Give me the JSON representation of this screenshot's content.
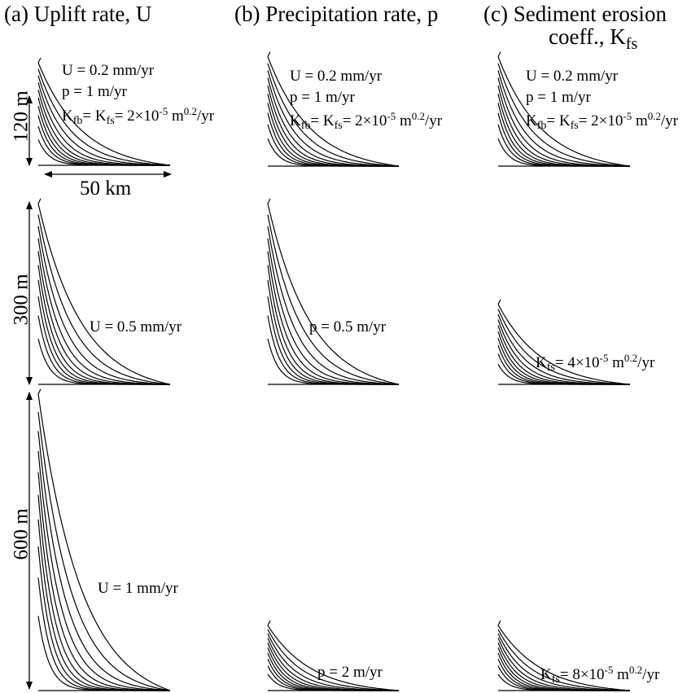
{
  "columns": {
    "a": {
      "title": "(a) Uplift rate, U"
    },
    "b": {
      "title": "(b) Precipitation rate, p"
    },
    "c": {
      "title_line1": "(c) Sediment erosion",
      "title_line2": "coeff., ",
      "title_sym": "K",
      "title_sub": "fs"
    }
  },
  "base": {
    "u": "U = 0.2 mm/yr",
    "p": "p = 1 m/yr",
    "k_a": "K",
    "k_sub_a": "fb",
    "k_eq": "= K",
    "k_sub_b": "fs",
    "k_val": "= 2×10",
    "k_exp": "-5",
    "k_unit": " m",
    "k_unit_exp": "0.2",
    "k_tail": "/yr"
  },
  "dims": {
    "h120": "120 m",
    "w50": "50 km",
    "h300": "300 m",
    "h600": "600 m"
  },
  "labels": {
    "a_mid": "U = 0.5 mm/yr",
    "a_bot": "U = 1 mm/yr",
    "b_mid": "p = 0.5 m/yr",
    "b_bot": "p = 2 m/yr",
    "c_mid_k": "K",
    "c_mid_sub": "fs",
    "c_mid_val": "= 4×10",
    "c_mid_exp": "-5",
    "c_mid_unit": " m",
    "c_mid_uexp": "0.2",
    "c_mid_tail": "/yr",
    "c_bot_k": "K",
    "c_bot_sub": "fs",
    "c_bot_val": "= 8×10",
    "c_bot_exp": "-5",
    "c_bot_unit": " m",
    "c_bot_uexp": "0.2",
    "c_bot_tail": "/yr"
  },
  "profiles": [
    {
      "panel": "a-top",
      "relief_m": 120,
      "length_km": 50,
      "curves": 10
    },
    {
      "panel": "b-top",
      "relief_m": 120,
      "length_km": 50,
      "curves": 10
    },
    {
      "panel": "c-top",
      "relief_m": 120,
      "length_km": 50,
      "curves": 10
    },
    {
      "panel": "a-mid",
      "relief_m": 300,
      "length_km": 50,
      "curves": 10
    },
    {
      "panel": "b-mid",
      "relief_m": 300,
      "length_km": 50,
      "curves": 10
    },
    {
      "panel": "c-mid",
      "relief_m": 80,
      "length_km": 50,
      "curves": 10
    },
    {
      "panel": "a-bot",
      "relief_m": 600,
      "length_km": 50,
      "curves": 10
    },
    {
      "panel": "b-bot",
      "relief_m": 65,
      "length_km": 50,
      "curves": 10
    },
    {
      "panel": "c-bot",
      "relief_m": 65,
      "length_km": 50,
      "curves": 10
    }
  ]
}
